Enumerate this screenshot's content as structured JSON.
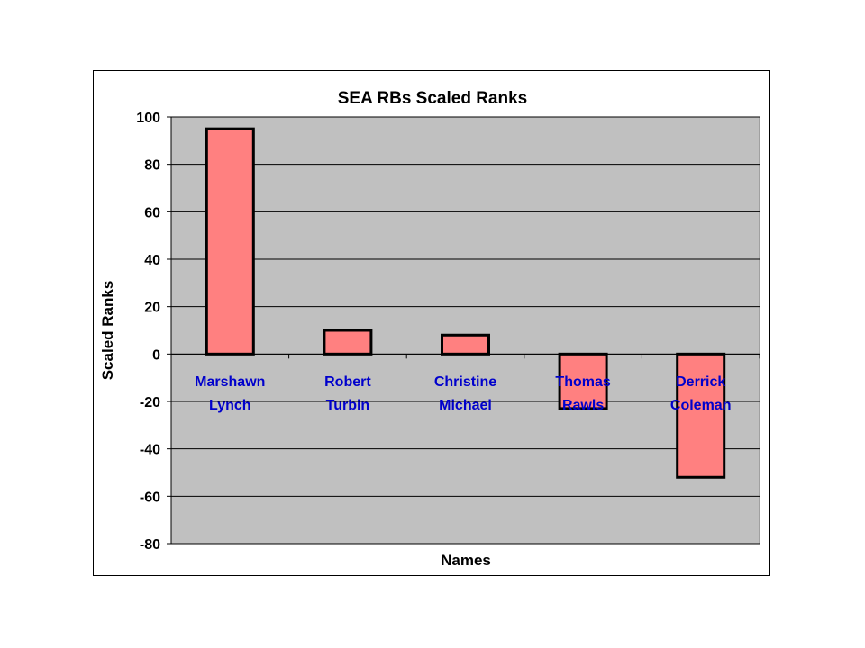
{
  "chart_data": {
    "type": "bar",
    "title": "SEA RBs Scaled Ranks",
    "xlabel": "Names",
    "ylabel": "Scaled Ranks",
    "categories": [
      [
        "Marshawn",
        "Lynch"
      ],
      [
        "Robert",
        "Turbin"
      ],
      [
        "Christine",
        "Michael"
      ],
      [
        "Thomas",
        "Rawls"
      ],
      [
        "Derrick",
        "Coleman"
      ]
    ],
    "values": [
      95,
      10,
      8,
      -23,
      -52
    ],
    "ylim": [
      -80,
      100
    ],
    "yticks": [
      "100",
      "80",
      "60",
      "40",
      "20",
      "0",
      "-20",
      "-40",
      "-60",
      "-80"
    ],
    "grid": true,
    "legend": "none",
    "colors": {
      "bar_fill": "#FF8080",
      "bar_stroke": "#000000",
      "plot_background": "#C0C0C0",
      "category_label": "#0000CC"
    }
  }
}
